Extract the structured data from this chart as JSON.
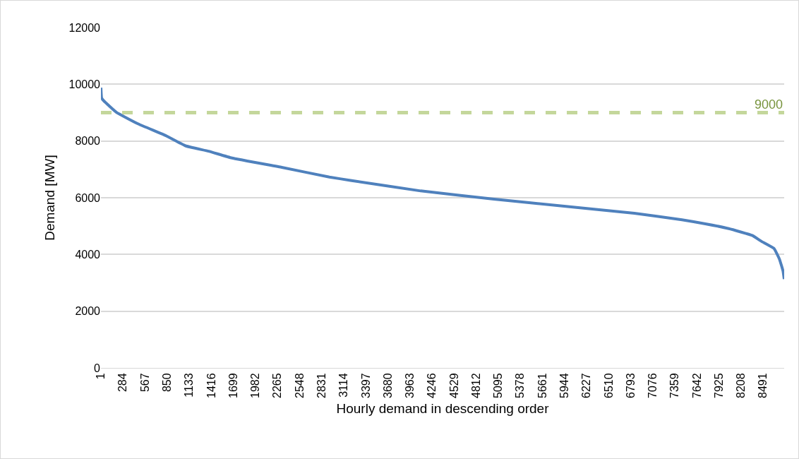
{
  "chart_data": {
    "type": "line",
    "xlabel": "Hourly demand in descending order",
    "ylabel": "Demand [MW]",
    "x": [
      1,
      10,
      36,
      200,
      480,
      840,
      1085,
      1380,
      1680,
      2320,
      2930,
      3200,
      4100,
      5040,
      5940,
      6840,
      7450,
      7750,
      8050,
      8350,
      8470,
      8630,
      8700,
      8745,
      8760
    ],
    "series": [
      {
        "color": "#4f81bd",
        "values": [
          9880,
          9520,
          9420,
          9010,
          8600,
          8180,
          7830,
          7640,
          7400,
          7070,
          6730,
          6610,
          6240,
          5950,
          5700,
          5450,
          5220,
          5080,
          4910,
          4670,
          4460,
          4210,
          3830,
          3420,
          3130
        ]
      }
    ],
    "xlim": [
      1,
      8760
    ],
    "xticks": [
      1,
      284,
      567,
      850,
      1133,
      1416,
      1699,
      1982,
      2265,
      2548,
      2831,
      3114,
      3397,
      3680,
      3963,
      4246,
      4529,
      4812,
      5095,
      5378,
      5661,
      5944,
      6227,
      6510,
      6793,
      7076,
      7359,
      7642,
      7925,
      8208,
      8491
    ],
    "ylim": [
      0,
      12000
    ],
    "yticks": [
      0,
      2000,
      4000,
      6000,
      8000,
      10000,
      12000
    ],
    "ref_lines": [
      {
        "axis": "y",
        "value": 9000,
        "label": "9000",
        "color": "#c4d79b",
        "line_style": "dashed"
      }
    ],
    "grid": "y",
    "marker": "none",
    "line_style": "solid"
  }
}
